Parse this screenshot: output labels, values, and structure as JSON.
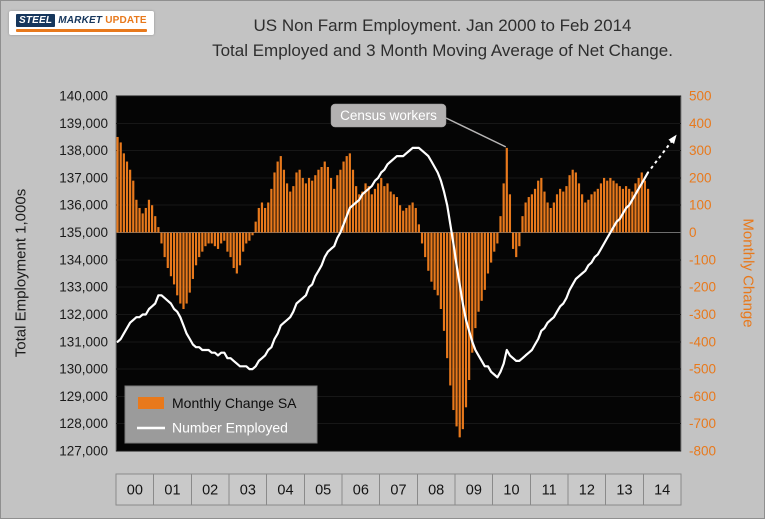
{
  "logo": {
    "steel": "STEEL",
    "market": "MARKET",
    "update": "UPDATE"
  },
  "title": {
    "line1": "US Non Farm Employment. Jan 2000 to Feb 2014",
    "line2": "Total Employed and 3 Month Moving Average of Net Change."
  },
  "colors": {
    "background": "#c3c3c3",
    "plot_bg": "#050505",
    "bar": "#e8791c",
    "line": "#ffffff",
    "left_axis_text": "#1b1b1b",
    "right_axis_text": "#e8791c",
    "legend_bg": "#9b9b9b",
    "annotation_bg": "#b3b1b1"
  },
  "chart_data": {
    "type": "combo",
    "x_range": "Jan 2000 - Feb 2014",
    "x_axis": {
      "years": [
        "00",
        "01",
        "02",
        "03",
        "04",
        "05",
        "06",
        "07",
        "08",
        "09",
        "10",
        "11",
        "12",
        "13",
        "14"
      ]
    },
    "left_axis": {
      "title": "Total Employment 1,000s",
      "min": 127000,
      "max": 140000,
      "step": 1000,
      "format": "comma"
    },
    "right_axis": {
      "title": "Monthly Change",
      "min": -800,
      "max": 500,
      "step": 100
    },
    "annotation": {
      "text": "Census workers",
      "target_index": 124
    },
    "legend": [
      {
        "label": "Monthly Change SA"
      },
      {
        "label": "Number Employed"
      }
    ],
    "series": [
      {
        "name": "Monthly Change SA",
        "type": "bar",
        "axis": "right",
        "color": "#e8791c",
        "values": [
          350,
          330,
          290,
          260,
          230,
          190,
          120,
          90,
          70,
          90,
          120,
          100,
          60,
          20,
          -40,
          -90,
          -130,
          -160,
          -190,
          -230,
          -260,
          -280,
          -260,
          -220,
          -170,
          -120,
          -90,
          -70,
          -50,
          -40,
          -40,
          -50,
          -60,
          -40,
          -30,
          -70,
          -90,
          -130,
          -150,
          -120,
          -70,
          -40,
          -30,
          -10,
          40,
          90,
          110,
          90,
          110,
          160,
          220,
          260,
          280,
          230,
          180,
          150,
          170,
          220,
          230,
          200,
          180,
          200,
          190,
          210,
          230,
          240,
          260,
          240,
          200,
          160,
          210,
          230,
          260,
          280,
          290,
          230,
          170,
          140,
          150,
          180,
          170,
          140,
          160,
          180,
          200,
          170,
          180,
          150,
          140,
          130,
          100,
          80,
          90,
          100,
          110,
          90,
          30,
          -40,
          -90,
          -140,
          -180,
          -210,
          -230,
          -280,
          -360,
          -460,
          -560,
          -650,
          -710,
          -750,
          -720,
          -640,
          -540,
          -440,
          -350,
          -290,
          -250,
          -210,
          -150,
          -110,
          -70,
          -40,
          60,
          180,
          310,
          140,
          -60,
          -90,
          -50,
          60,
          110,
          130,
          140,
          160,
          190,
          200,
          150,
          110,
          90,
          110,
          140,
          160,
          150,
          170,
          210,
          230,
          220,
          180,
          140,
          110,
          120,
          140,
          150,
          160,
          180,
          200,
          190,
          200,
          190,
          180,
          170,
          160,
          170,
          160,
          150,
          180,
          200,
          220,
          190,
          160
        ]
      },
      {
        "name": "Number Employed",
        "type": "line",
        "axis": "left",
        "color": "#ffffff",
        "values": [
          131000,
          131100,
          131300,
          131500,
          131700,
          131800,
          131900,
          131900,
          132000,
          132000,
          132200,
          132300,
          132400,
          132700,
          132700,
          132600,
          132500,
          132400,
          132200,
          132100,
          131900,
          131600,
          131300,
          131100,
          130900,
          130800,
          130800,
          130700,
          130700,
          130700,
          130600,
          130600,
          130500,
          130600,
          130600,
          130400,
          130400,
          130300,
          130200,
          130100,
          130100,
          130100,
          130000,
          130000,
          130100,
          130300,
          130400,
          130500,
          130700,
          130800,
          131100,
          131300,
          131600,
          131700,
          131800,
          131900,
          132100,
          132400,
          132500,
          132600,
          132700,
          133000,
          133100,
          133400,
          133600,
          133800,
          134100,
          134300,
          134400,
          134500,
          134800,
          135000,
          135300,
          135600,
          135900,
          136000,
          136100,
          136200,
          136400,
          136500,
          136600,
          136700,
          136900,
          137000,
          137200,
          137300,
          137500,
          137600,
          137700,
          137800,
          137800,
          137800,
          137900,
          138000,
          138100,
          138100,
          138100,
          138000,
          137900,
          137800,
          137600,
          137400,
          137200,
          136900,
          136500,
          136000,
          135300,
          134600,
          133800,
          133100,
          132400,
          131800,
          131400,
          131000,
          130700,
          130500,
          130300,
          130100,
          130100,
          129900,
          129800,
          129700,
          129900,
          130200,
          130700,
          130500,
          130400,
          130300,
          130300,
          130400,
          130500,
          130600,
          130700,
          130900,
          131100,
          131400,
          131500,
          131700,
          131800,
          131900,
          132100,
          132300,
          132400,
          132600,
          132900,
          133100,
          133300,
          133400,
          133500,
          133600,
          133800,
          133900,
          134100,
          134200,
          134400,
          134600,
          134800,
          135000,
          135200,
          135400,
          135500,
          135700,
          135900,
          136000,
          136200,
          136400,
          136600,
          136800,
          137000,
          137200
        ]
      }
    ]
  }
}
